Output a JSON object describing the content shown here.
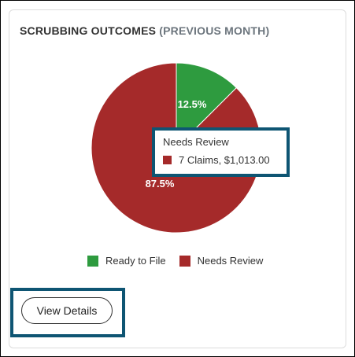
{
  "card": {
    "title_main": "SCRUBBING OUTCOMES",
    "title_sub": "(PREVIOUS MONTH)"
  },
  "chart_data": {
    "type": "pie",
    "categories": [
      "Ready to File",
      "Needs Review"
    ],
    "values": [
      12.5,
      87.5
    ],
    "colors": [
      "#2e9b3f",
      "#a52a2a"
    ],
    "data_labels": [
      "12.5%",
      "87.5%"
    ],
    "legend": [
      "Ready to File",
      "Needs Review"
    ],
    "legend_position": "bottom"
  },
  "tooltip": {
    "title": "Needs Review",
    "text": "7 Claims, $1,013.00",
    "color": "#a52a2a"
  },
  "actions": {
    "view_details_label": "View Details"
  },
  "colors": {
    "highlight_border": "#0e5573"
  }
}
